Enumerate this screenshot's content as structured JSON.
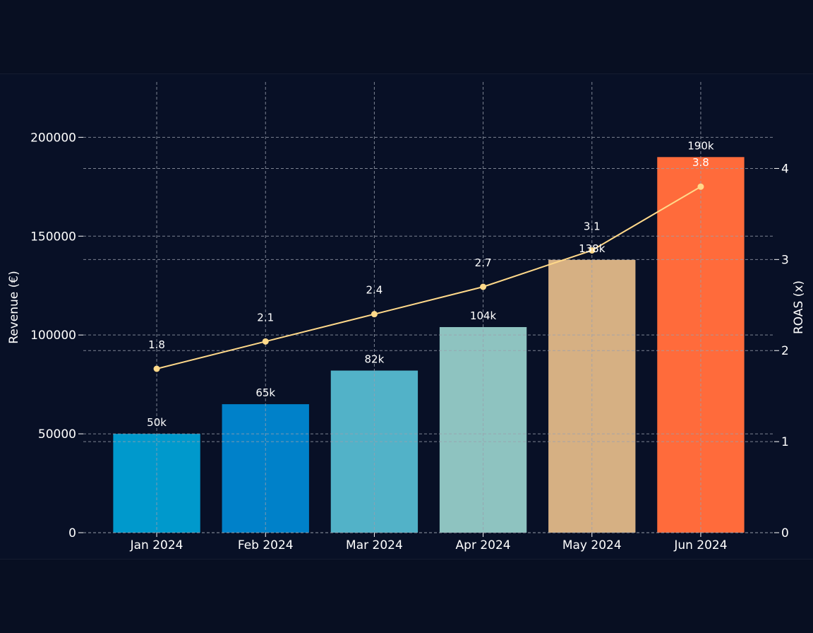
{
  "chart_data": {
    "type": "bar",
    "categories": [
      "Jan 2024",
      "Feb 2024",
      "Mar 2024",
      "Apr 2024",
      "May 2024",
      "Jun 2024"
    ],
    "series": [
      {
        "axis": "left",
        "kind": "bar",
        "values": [
          50000,
          65000,
          82000,
          104000,
          138000,
          190000
        ],
        "data_labels": [
          "50k",
          "65k",
          "82k",
          "104k",
          "138k",
          "190k"
        ],
        "colors": [
          "#0099cc",
          "#0081c9",
          "#52b2c8",
          "#8ec3c0",
          "#d6b083",
          "#ff6b3b"
        ]
      },
      {
        "axis": "right",
        "kind": "line",
        "values": [
          1.8,
          2.1,
          2.4,
          2.7,
          3.1,
          3.8
        ],
        "data_labels": [
          "1.8",
          "2.1",
          "2.4",
          "2.7",
          "3.1",
          "3.8"
        ],
        "color": "#ffd98a"
      }
    ],
    "ylabel": "Revenue (€)",
    "y2label": "ROAS (x)",
    "ylim": [
      0,
      228000
    ],
    "y2lim": [
      0,
      4.95
    ],
    "yticks": [
      "0",
      "50000",
      "100000",
      "150000",
      "200000"
    ],
    "y2ticks": [
      "0",
      "1",
      "2",
      "3",
      "4"
    ],
    "grid": true,
    "background": "#080f22",
    "text_color": "#ffffff"
  }
}
